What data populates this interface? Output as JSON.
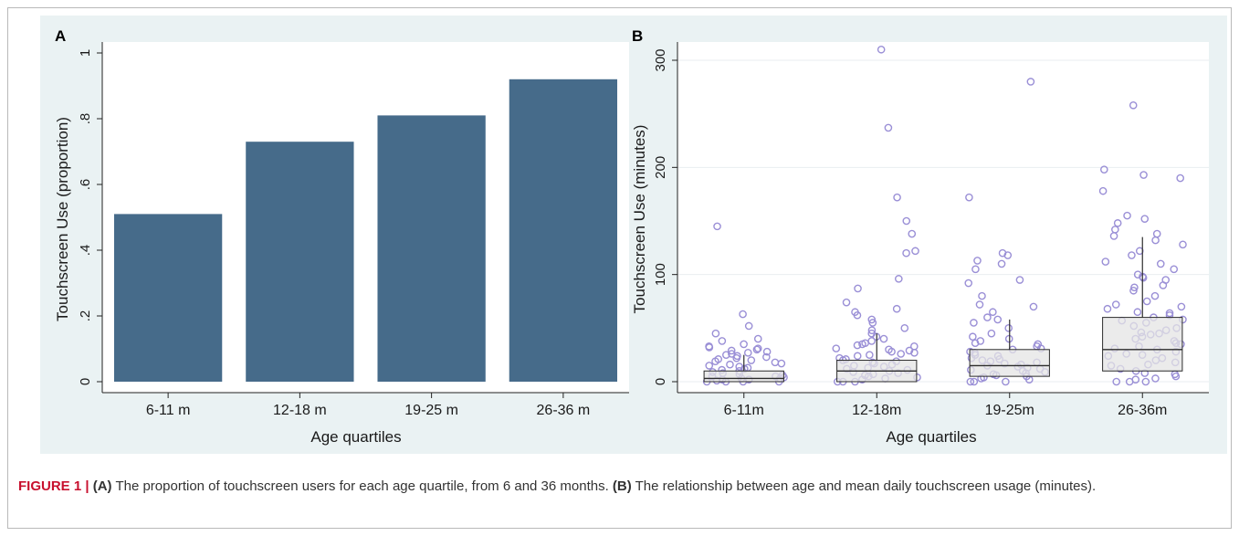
{
  "caption": {
    "label": "FIGURE 1 |",
    "a_tag": "(A)",
    "a_text": " The proportion of touchscreen users for each age quartile, from 6 and 36 months. ",
    "b_tag": "(B)",
    "b_text": " The relationship between age and mean daily touchscreen usage (minutes)."
  },
  "colors": {
    "bar": "#466b8a",
    "point": "#9a8fd6",
    "box_fill": "#e4e4e4",
    "box_line": "#2b2b2b",
    "panel_bg": "#eaf2f3",
    "grid": "#ffffff"
  },
  "chart_data": [
    {
      "panel": "A",
      "type": "bar",
      "categories": [
        "6-11 m",
        "12-18 m",
        "19-25 m",
        "26-36 m"
      ],
      "values": [
        0.51,
        0.73,
        0.81,
        0.92
      ],
      "xlabel": "Age quartiles",
      "ylabel": "Touchscreen Use (proportion)",
      "ylim": [
        0,
        1
      ],
      "yticks": [
        0,
        0.2,
        0.4,
        0.6,
        0.8,
        1
      ],
      "ytick_labels": [
        "0",
        ".2",
        ".4",
        ".6",
        ".8",
        "1"
      ],
      "grid": false
    },
    {
      "panel": "B",
      "type": "scatter",
      "subtype": "box-plot with jittered points",
      "categories": [
        "6-11m",
        "12-18m",
        "19-25m",
        "26-36m"
      ],
      "xlabel": "Age quartiles",
      "ylabel": "Touchscreen Use (minutes)",
      "ylim": [
        0,
        310
      ],
      "yticks": [
        0,
        100,
        200,
        300
      ],
      "ytick_labels": [
        "0",
        "100",
        "200",
        "300"
      ],
      "grid": true,
      "boxes": [
        {
          "q1": 0,
          "median": 3,
          "q3": 10,
          "whisker_high": 25
        },
        {
          "q1": 0,
          "median": 10,
          "q3": 20,
          "whisker_high": 45
        },
        {
          "q1": 5,
          "median": 15,
          "q3": 30,
          "whisker_high": 58
        },
        {
          "q1": 10,
          "median": 30,
          "q3": 60,
          "whisker_high": 135
        }
      ],
      "points": [
        [
          0,
          2,
          5,
          8,
          10,
          12,
          15,
          18,
          20,
          22,
          25,
          28,
          30,
          33,
          35,
          38,
          40,
          45,
          52,
          63,
          145,
          0,
          3,
          6,
          9,
          14,
          17,
          21,
          24,
          27,
          31,
          0,
          1,
          4,
          7,
          11,
          13,
          16,
          19,
          23,
          26,
          29,
          32,
          0,
          2,
          5,
          3
        ],
        [
          0,
          3,
          5,
          8,
          10,
          12,
          15,
          18,
          20,
          22,
          25,
          28,
          30,
          33,
          35,
          38,
          42,
          45,
          50,
          55,
          58,
          62,
          65,
          68,
          74,
          87,
          96,
          120,
          122,
          138,
          150,
          172,
          237,
          310,
          0,
          2,
          6,
          9,
          13,
          16,
          19,
          24,
          27,
          31,
          36,
          40,
          48,
          0,
          4,
          7,
          11,
          14,
          17,
          21,
          26,
          29,
          34
        ],
        [
          0,
          3,
          5,
          8,
          10,
          12,
          15,
          18,
          20,
          22,
          25,
          28,
          30,
          33,
          35,
          38,
          40,
          42,
          45,
          50,
          55,
          58,
          60,
          65,
          70,
          72,
          80,
          92,
          95,
          105,
          110,
          113,
          118,
          120,
          172,
          280,
          0,
          2,
          6,
          9,
          13,
          16,
          19,
          24,
          27,
          31,
          36,
          0,
          4,
          7,
          11,
          14,
          17,
          21
        ],
        [
          0,
          5,
          8,
          10,
          15,
          18,
          20,
          25,
          28,
          30,
          33,
          35,
          38,
          40,
          42,
          45,
          48,
          50,
          55,
          58,
          60,
          62,
          65,
          68,
          70,
          75,
          80,
          85,
          90,
          95,
          98,
          100,
          105,
          110,
          112,
          118,
          122,
          128,
          132,
          136,
          138,
          142,
          148,
          152,
          155,
          178,
          190,
          193,
          198,
          258,
          0,
          3,
          12,
          22,
          26,
          36,
          44,
          52,
          64,
          72,
          0,
          2,
          7,
          16,
          24,
          31,
          46,
          57,
          88,
          97
        ]
      ]
    }
  ]
}
